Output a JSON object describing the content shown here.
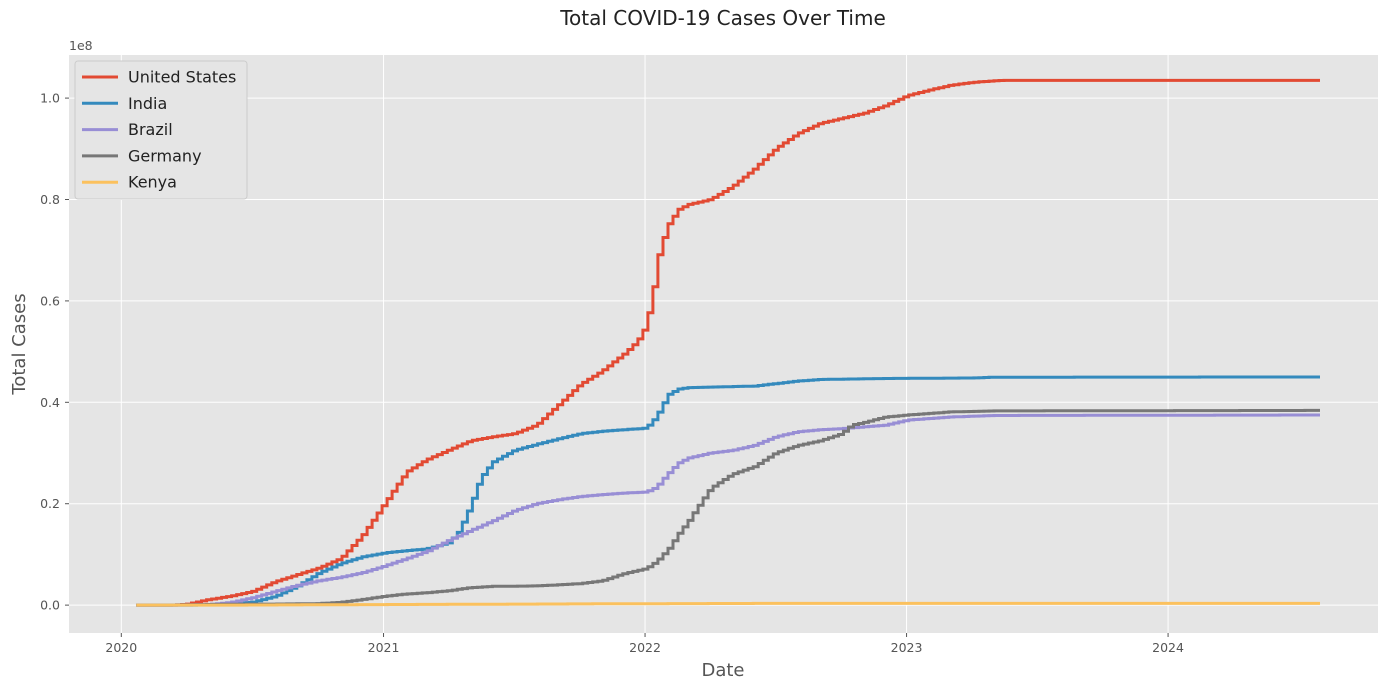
{
  "chart_data": {
    "type": "line",
    "title": "Total COVID-19 Cases Over Time",
    "xlabel": "Date",
    "ylabel": "Total Cases",
    "y_offset_label": "1e8",
    "x_ticks": [
      "2020",
      "2021",
      "2022",
      "2023",
      "2024"
    ],
    "y_ticks": [
      "0.0",
      "0.2",
      "0.4",
      "0.6",
      "0.8",
      "1.0"
    ],
    "xlim": [
      "2019-10-20",
      "2024-10-20"
    ],
    "ylim": [
      -5500000,
      108500000
    ],
    "grid": true,
    "legend_position": "top-left",
    "series": [
      {
        "name": "United States",
        "color": "#E24A33",
        "points": [
          [
            "2020-01-22",
            0
          ],
          [
            "2020-03-15",
            5000
          ],
          [
            "2020-04-01",
            200000
          ],
          [
            "2020-05-01",
            1100000
          ],
          [
            "2020-06-01",
            1800000
          ],
          [
            "2020-07-01",
            2700000
          ],
          [
            "2020-08-01",
            4600000
          ],
          [
            "2020-09-01",
            6000000
          ],
          [
            "2020-10-01",
            7300000
          ],
          [
            "2020-11-01",
            9200000
          ],
          [
            "2020-12-01",
            13700000
          ],
          [
            "2021-01-01",
            20000000
          ],
          [
            "2021-02-01",
            26300000
          ],
          [
            "2021-03-01",
            28700000
          ],
          [
            "2021-04-01",
            30600000
          ],
          [
            "2021-05-01",
            32400000
          ],
          [
            "2021-06-01",
            33200000
          ],
          [
            "2021-07-01",
            33800000
          ],
          [
            "2021-08-01",
            35500000
          ],
          [
            "2021-09-01",
            39500000
          ],
          [
            "2021-10-01",
            43500000
          ],
          [
            "2021-11-01",
            46200000
          ],
          [
            "2021-12-01",
            49500000
          ],
          [
            "2021-12-20",
            52000000
          ],
          [
            "2022-01-01",
            55000000
          ],
          [
            "2022-01-10",
            61000000
          ],
          [
            "2022-01-20",
            70000000
          ],
          [
            "2022-02-01",
            75000000
          ],
          [
            "2022-02-15",
            78000000
          ],
          [
            "2022-03-01",
            79000000
          ],
          [
            "2022-04-01",
            80000000
          ],
          [
            "2022-05-01",
            82500000
          ],
          [
            "2022-06-01",
            86000000
          ],
          [
            "2022-07-01",
            90000000
          ],
          [
            "2022-08-01",
            93000000
          ],
          [
            "2022-09-01",
            95000000
          ],
          [
            "2022-10-01",
            96000000
          ],
          [
            "2022-11-01",
            97000000
          ],
          [
            "2022-12-01",
            98500000
          ],
          [
            "2023-01-01",
            100500000
          ],
          [
            "2023-02-01",
            101600000
          ],
          [
            "2023-03-01",
            102500000
          ],
          [
            "2023-04-01",
            103100000
          ],
          [
            "2023-05-01",
            103400000
          ],
          [
            "2023-05-15",
            103500000
          ],
          [
            "2024-07-31",
            103500000
          ]
        ]
      },
      {
        "name": "India",
        "color": "#348ABD",
        "points": [
          [
            "2020-01-22",
            0
          ],
          [
            "2020-04-01",
            2000
          ],
          [
            "2020-05-01",
            40000
          ],
          [
            "2020-06-01",
            200000
          ],
          [
            "2020-07-01",
            600000
          ],
          [
            "2020-08-01",
            1700000
          ],
          [
            "2020-09-01",
            3700000
          ],
          [
            "2020-10-01",
            6300000
          ],
          [
            "2020-11-01",
            8200000
          ],
          [
            "2020-12-01",
            9500000
          ],
          [
            "2021-01-01",
            10300000
          ],
          [
            "2021-02-01",
            10750000
          ],
          [
            "2021-03-01",
            11100000
          ],
          [
            "2021-04-01",
            12300000
          ],
          [
            "2021-04-15",
            14500000
          ],
          [
            "2021-05-01",
            19500000
          ],
          [
            "2021-05-15",
            25000000
          ],
          [
            "2021-06-01",
            28200000
          ],
          [
            "2021-07-01",
            30500000
          ],
          [
            "2021-08-01",
            31700000
          ],
          [
            "2021-09-01",
            32800000
          ],
          [
            "2021-10-01",
            33800000
          ],
          [
            "2021-11-01",
            34300000
          ],
          [
            "2021-12-01",
            34600000
          ],
          [
            "2022-01-01",
            34900000
          ],
          [
            "2022-01-15",
            37000000
          ],
          [
            "2022-02-01",
            41500000
          ],
          [
            "2022-02-15",
            42600000
          ],
          [
            "2022-03-01",
            42900000
          ],
          [
            "2022-06-01",
            43200000
          ],
          [
            "2022-08-01",
            44200000
          ],
          [
            "2022-09-01",
            44500000
          ],
          [
            "2022-12-01",
            44700000
          ],
          [
            "2023-04-01",
            44800000
          ],
          [
            "2023-05-01",
            44950000
          ],
          [
            "2024-07-31",
            45000000
          ]
        ]
      },
      {
        "name": "Brazil",
        "color": "#988ED5",
        "points": [
          [
            "2020-01-22",
            0
          ],
          [
            "2020-03-01",
            0
          ],
          [
            "2020-04-01",
            6000
          ],
          [
            "2020-05-01",
            90000
          ],
          [
            "2020-06-01",
            550000
          ],
          [
            "2020-07-01",
            1450000
          ],
          [
            "2020-08-01",
            2700000
          ],
          [
            "2020-09-01",
            3900000
          ],
          [
            "2020-10-01",
            4800000
          ],
          [
            "2020-11-01",
            5500000
          ],
          [
            "2020-12-01",
            6400000
          ],
          [
            "2021-01-01",
            7700000
          ],
          [
            "2021-02-01",
            9200000
          ],
          [
            "2021-03-01",
            10600000
          ],
          [
            "2021-04-01",
            12800000
          ],
          [
            "2021-05-01",
            14700000
          ],
          [
            "2021-06-01",
            16600000
          ],
          [
            "2021-07-01",
            18600000
          ],
          [
            "2021-08-01",
            20000000
          ],
          [
            "2021-09-01",
            20800000
          ],
          [
            "2021-10-01",
            21400000
          ],
          [
            "2021-11-01",
            21800000
          ],
          [
            "2021-12-01",
            22100000
          ],
          [
            "2022-01-01",
            22300000
          ],
          [
            "2022-01-15",
            23200000
          ],
          [
            "2022-02-01",
            26000000
          ],
          [
            "2022-02-15",
            28000000
          ],
          [
            "2022-03-01",
            29000000
          ],
          [
            "2022-04-01",
            30000000
          ],
          [
            "2022-05-01",
            30500000
          ],
          [
            "2022-06-01",
            31500000
          ],
          [
            "2022-07-01",
            33200000
          ],
          [
            "2022-08-01",
            34200000
          ],
          [
            "2022-09-01",
            34600000
          ],
          [
            "2022-10-01",
            34800000
          ],
          [
            "2022-12-01",
            35500000
          ],
          [
            "2023-01-01",
            36500000
          ],
          [
            "2023-03-01",
            37100000
          ],
          [
            "2023-05-01",
            37400000
          ],
          [
            "2024-07-31",
            37500000
          ]
        ]
      },
      {
        "name": "Germany",
        "color": "#777777",
        "points": [
          [
            "2020-01-22",
            0
          ],
          [
            "2020-03-01",
            100
          ],
          [
            "2020-04-01",
            70000
          ],
          [
            "2020-06-01",
            180000
          ],
          [
            "2020-08-01",
            210000
          ],
          [
            "2020-10-01",
            300000
          ],
          [
            "2020-11-01",
            550000
          ],
          [
            "2020-12-01",
            1100000
          ],
          [
            "2021-01-01",
            1750000
          ],
          [
            "2021-02-01",
            2200000
          ],
          [
            "2021-03-01",
            2450000
          ],
          [
            "2021-04-01",
            2850000
          ],
          [
            "2021-05-01",
            3450000
          ],
          [
            "2021-06-01",
            3700000
          ],
          [
            "2021-07-01",
            3730000
          ],
          [
            "2021-08-01",
            3800000
          ],
          [
            "2021-09-01",
            4000000
          ],
          [
            "2021-10-01",
            4250000
          ],
          [
            "2021-11-01",
            4800000
          ],
          [
            "2021-12-01",
            6200000
          ],
          [
            "2022-01-01",
            7200000
          ],
          [
            "2022-01-15",
            8500000
          ],
          [
            "2022-02-01",
            11000000
          ],
          [
            "2022-02-15",
            14000000
          ],
          [
            "2022-03-01",
            16500000
          ],
          [
            "2022-03-15",
            19500000
          ],
          [
            "2022-04-01",
            23000000
          ],
          [
            "2022-05-01",
            25800000
          ],
          [
            "2022-06-01",
            27300000
          ],
          [
            "2022-07-01",
            30000000
          ],
          [
            "2022-08-01",
            31500000
          ],
          [
            "2022-09-01",
            32400000
          ],
          [
            "2022-10-01",
            33800000
          ],
          [
            "2022-10-15",
            35500000
          ],
          [
            "2022-11-01",
            36000000
          ],
          [
            "2022-12-01",
            37100000
          ],
          [
            "2023-01-01",
            37500000
          ],
          [
            "2023-03-01",
            38100000
          ],
          [
            "2023-05-01",
            38300000
          ],
          [
            "2024-07-31",
            38400000
          ]
        ]
      },
      {
        "name": "Kenya",
        "color": "#FBC15E",
        "points": [
          [
            "2020-01-22",
            0
          ],
          [
            "2020-06-01",
            3000
          ],
          [
            "2020-12-01",
            95000
          ],
          [
            "2021-06-01",
            180000
          ],
          [
            "2021-12-01",
            270000
          ],
          [
            "2022-06-01",
            330000
          ],
          [
            "2023-01-01",
            342000
          ],
          [
            "2024-07-31",
            344000
          ]
        ]
      }
    ]
  }
}
